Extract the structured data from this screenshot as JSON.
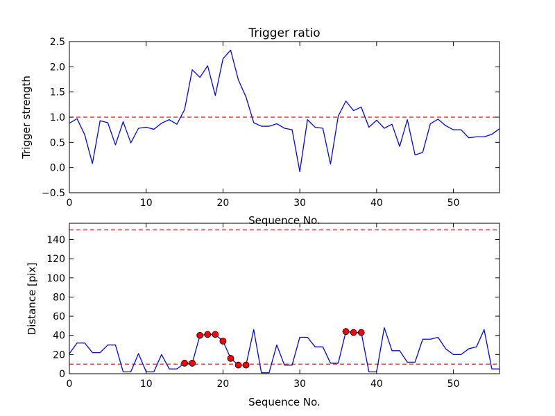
{
  "chart_data": [
    {
      "type": "line",
      "title": "Trigger ratio",
      "xlabel": "Sequence No.",
      "ylabel": "Trigger strength",
      "xlim": [
        0,
        56
      ],
      "ylim": [
        -0.5,
        2.5
      ],
      "x_ticks": [
        0,
        10,
        20,
        30,
        40,
        50
      ],
      "x_tick_labels": [
        "0",
        "10",
        "20",
        "30",
        "40",
        "50"
      ],
      "y_ticks": [
        -0.5,
        0.0,
        0.5,
        1.0,
        1.5,
        2.0,
        2.5
      ],
      "y_tick_labels": [
        "−0.5",
        "0.0",
        "0.5",
        "1.0",
        "1.5",
        "2.0",
        "2.5"
      ],
      "grid": false,
      "series": [
        {
          "color": "#0000ff",
          "style": "solid",
          "x": [
            0,
            1,
            2,
            3,
            4,
            5,
            6,
            7,
            8,
            9,
            10,
            11,
            12,
            13,
            14,
            15,
            16,
            17,
            18,
            19,
            20,
            21,
            22,
            23,
            24,
            25,
            26,
            27,
            28,
            29,
            30,
            31,
            32,
            33,
            34,
            35,
            36,
            37,
            38,
            39,
            40,
            41,
            42,
            43,
            44,
            45,
            46,
            47,
            48,
            49,
            50,
            51,
            52,
            53,
            54,
            55,
            56
          ],
          "values": [
            0.88,
            0.97,
            0.65,
            0.08,
            0.93,
            0.89,
            0.45,
            0.91,
            0.49,
            0.78,
            0.8,
            0.76,
            0.88,
            0.95,
            0.86,
            1.15,
            1.94,
            1.79,
            2.02,
            1.43,
            2.16,
            2.33,
            1.74,
            1.4,
            0.89,
            0.82,
            0.82,
            0.87,
            0.78,
            0.75,
            -0.08,
            0.95,
            0.8,
            0.78,
            0.07,
            1.02,
            1.32,
            1.13,
            1.2,
            0.8,
            0.94,
            0.78,
            0.86,
            0.42,
            0.95,
            0.25,
            0.3,
            0.87,
            0.96,
            0.83,
            0.75,
            0.75,
            0.59,
            0.61,
            0.61,
            0.66,
            0.77
          ]
        }
      ],
      "reference_lines": [
        {
          "y": 1.0,
          "color": "#ff0000",
          "style": "dashed"
        }
      ]
    },
    {
      "type": "line",
      "title": "",
      "xlabel": "Sequence No.",
      "ylabel": "Distance [pix]",
      "xlim": [
        0,
        56
      ],
      "ylim": [
        0,
        157
      ],
      "x_ticks": [
        0,
        10,
        20,
        30,
        40,
        50
      ],
      "x_tick_labels": [
        "0",
        "10",
        "20",
        "30",
        "40",
        "50"
      ],
      "y_ticks": [
        0,
        20,
        40,
        60,
        80,
        100,
        120,
        140
      ],
      "y_tick_labels": [
        "0",
        "20",
        "40",
        "60",
        "80",
        "100",
        "120",
        "140"
      ],
      "grid": false,
      "series": [
        {
          "color": "#0000ff",
          "style": "solid",
          "x": [
            0,
            1,
            2,
            3,
            4,
            5,
            6,
            7,
            8,
            9,
            10,
            11,
            12,
            13,
            14,
            15,
            16,
            17,
            18,
            19,
            20,
            21,
            22,
            23,
            24,
            25,
            26,
            27,
            28,
            29,
            30,
            31,
            32,
            33,
            34,
            35,
            36,
            37,
            38,
            39,
            40,
            41,
            42,
            43,
            44,
            45,
            46,
            47,
            48,
            49,
            50,
            51,
            52,
            53,
            54,
            55,
            56
          ],
          "values": [
            21,
            32,
            32,
            22,
            22,
            30,
            30,
            2,
            2,
            21,
            2,
            2,
            20,
            5,
            5,
            11,
            11,
            40,
            41,
            41,
            34,
            16,
            9,
            9,
            46,
            1,
            1,
            30,
            9,
            9,
            38,
            38,
            28,
            28,
            11,
            11,
            44,
            43,
            43,
            2,
            2,
            48,
            24,
            24,
            12,
            12,
            36,
            36,
            38,
            26,
            20,
            20,
            26,
            28,
            46,
            5,
            5
          ]
        },
        {
          "name": "",
          "color": "#ff0000",
          "marker": "circle",
          "x": [
            15,
            16,
            17,
            18,
            19,
            20,
            21,
            22,
            23,
            36,
            37,
            38
          ],
          "values": [
            11,
            11,
            40,
            41,
            41,
            34,
            16,
            9,
            9,
            44,
            43,
            43
          ]
        }
      ],
      "reference_lines": [
        {
          "y": 150,
          "color": "#ff0000",
          "style": "dashed"
        },
        {
          "y": 10,
          "color": "#ff0000",
          "style": "dashed"
        }
      ]
    }
  ]
}
